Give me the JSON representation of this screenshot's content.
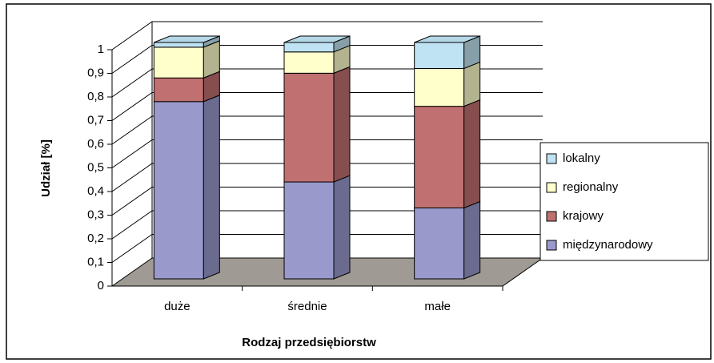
{
  "chart_data": {
    "type": "bar",
    "stacked": true,
    "y_label": "Udział [%]",
    "x_label": "Rodzaj przedsiębiorstw",
    "categories": [
      "duże",
      "średnie",
      "małe"
    ],
    "series": [
      {
        "name": "międzynarodowy",
        "color": "#9999cc",
        "values": [
          0.75,
          0.41,
          0.3
        ]
      },
      {
        "name": "krajowy",
        "color": "#c07070",
        "values": [
          0.1,
          0.46,
          0.43
        ]
      },
      {
        "name": "regionalny",
        "color": "#ffffcc",
        "values": [
          0.13,
          0.09,
          0.16
        ]
      },
      {
        "name": "lokalny",
        "color": "#bfe3f2",
        "values": [
          0.02,
          0.04,
          0.11
        ]
      }
    ],
    "ylim": [
      0,
      1
    ],
    "yticks": [
      0,
      {
        "value": 0.1,
        "label": "0,1"
      },
      {
        "value": 0.2,
        "label": "0,2"
      },
      {
        "value": 0.3,
        "label": "0,3"
      },
      {
        "value": 0.4,
        "label": "0,4"
      },
      {
        "value": 0.5,
        "label": "0,5"
      },
      {
        "value": 0.6,
        "label": "0,6"
      },
      {
        "value": 0.7,
        "label": "0,7"
      },
      {
        "value": 0.8,
        "label": "0,8"
      },
      {
        "value": 0.9,
        "label": "0,9"
      },
      1
    ],
    "grid": true,
    "legend": "right",
    "floor_color": "#a09a94"
  }
}
